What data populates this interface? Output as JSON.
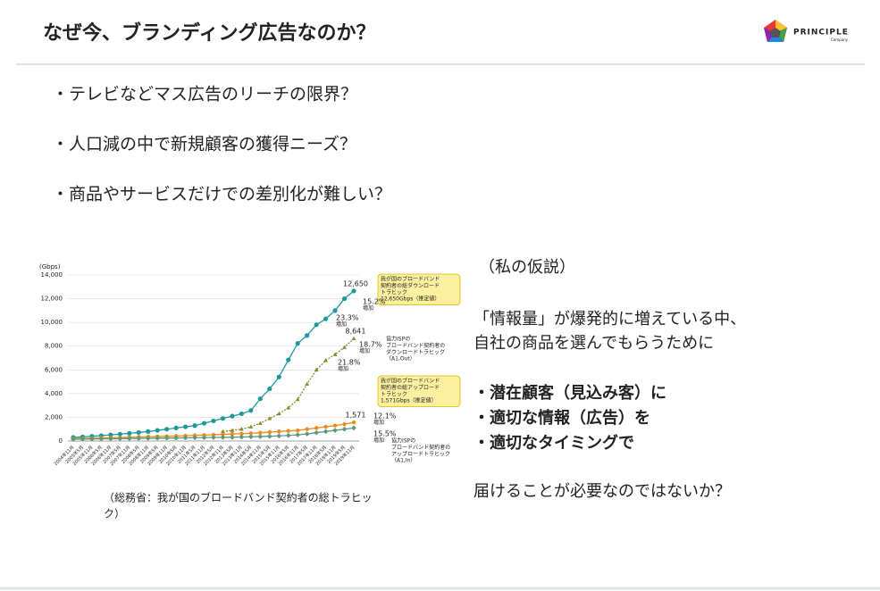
{
  "header": {
    "title": "なぜ今、ブランディング広告なのか？",
    "logo": "PRINCIPLE",
    "logo_sub": "Company"
  },
  "questions": [
    "・テレビなどマス広告のリーチの限界？",
    "・人口減の中で新規顧客の獲得ニーズ？",
    "・商品やサービスだけでの差別化が難しい？"
  ],
  "chart_data": {
    "type": "line",
    "ylabel": "(Gbps)",
    "ylim": [
      0,
      14000
    ],
    "yticks": [
      0,
      {
        "value": 2000,
        "label": "2,000"
      },
      {
        "value": 4000,
        "label": "4,000"
      },
      {
        "value": 6000,
        "label": "6,000"
      },
      {
        "value": 8000,
        "label": "8,000"
      },
      {
        "value": 10000,
        "label": "10,000"
      },
      {
        "value": 12000,
        "label": "12,000"
      },
      {
        "value": 14000,
        "label": "14,000"
      }
    ],
    "grid": true,
    "categories": [
      "2004年11月",
      "2005年5月",
      "2005年11月",
      "2006年5月",
      "2006年11月",
      "2007年5月",
      "2007年11月",
      "2008年5月",
      "2008年11月",
      "2009年5月",
      "2009年11月",
      "2010年5月",
      "2010年11月",
      "2011年5月",
      "2011年11月",
      "2012年5月",
      "2012年11月",
      "2013年5月",
      "2013年11月",
      "2014年5月",
      "2014年11月",
      "2015年5月",
      "2015年11月",
      "2016年5月",
      "2016年11月",
      "2017年5月",
      "2017年11月",
      "2018年5月",
      "2018年11月",
      "2019年5月",
      "2019年11月"
    ],
    "series": [
      {
        "name": "総ダウンロードトラヒック",
        "color": "#1a9a9c",
        "end_label": "12,650",
        "values": [
          300,
          350,
          400,
          450,
          520,
          580,
          650,
          720,
          800,
          900,
          1000,
          1100,
          1200,
          1300,
          1500,
          1700,
          1900,
          2100,
          2300,
          2580,
          3560,
          4400,
          5400,
          6840,
          8232,
          8900,
          9800,
          10300,
          11000,
          12000,
          12650
        ]
      },
      {
        "name": "協力ISPダウンロードトラヒック",
        "color": "#8a8a2a",
        "end_label": "8,641",
        "values": [
          null,
          null,
          null,
          null,
          null,
          null,
          null,
          null,
          null,
          null,
          null,
          null,
          null,
          null,
          null,
          null,
          800,
          900,
          1000,
          1200,
          1500,
          1900,
          2300,
          2800,
          3500,
          4800,
          6000,
          6800,
          7300,
          7900,
          8641
        ]
      },
      {
        "name": "総アップロードトラヒック",
        "color": "#f08a1c",
        "end_label": "1,571",
        "values": [
          200,
          220,
          240,
          260,
          280,
          300,
          320,
          340,
          360,
          380,
          400,
          420,
          450,
          480,
          500,
          530,
          560,
          590,
          620,
          650,
          700,
          750,
          800,
          850,
          900,
          1000,
          1100,
          1200,
          1300,
          1420,
          1571
        ]
      },
      {
        "name": "協力ISPアップロードトラヒック",
        "color": "#5a9a7a",
        "values": [
          150,
          160,
          170,
          180,
          190,
          200,
          210,
          220,
          230,
          240,
          250,
          260,
          270,
          280,
          290,
          300,
          310,
          320,
          340,
          360,
          380,
          400,
          430,
          470,
          520,
          600,
          700,
          800,
          900,
          1000,
          1100
        ]
      }
    ],
    "annotations": [
      {
        "lines": [
          "我が国のブロードバンド",
          "契約者の総ダウンロード",
          "トラヒック",
          "12,650Gbps（推定値）"
        ],
        "color": "#1a7a9c",
        "box": "#fbf0a0"
      },
      {
        "lines": [
          "15.2%",
          "増加"
        ],
        "color": "#1a9a9c"
      },
      {
        "lines": [
          "23.3%",
          "増加"
        ],
        "color": "#1a9a9c"
      },
      {
        "lines": [
          "協力ISPの",
          "ブロードバンド契約者の",
          "ダウンロードトラヒック",
          "（A1,Out）"
        ],
        "color": "#8a8a2a"
      },
      {
        "lines": [
          "18.7%",
          "増加"
        ],
        "color": "#8a8a2a"
      },
      {
        "lines": [
          "21.8%",
          "増加"
        ],
        "color": "#8a8a2a"
      },
      {
        "lines": [
          "我が国のブロードバンド",
          "契約者の総アップロード",
          "トラヒック",
          "1,571Gbps（推定値）"
        ],
        "color": "#e07010",
        "box": "#fbf0a0"
      },
      {
        "lines": [
          "12.1%",
          "増加"
        ],
        "color": "#f08a1c"
      },
      {
        "lines": [
          "15.5%",
          "増加"
        ],
        "color": "#5a9a7a"
      },
      {
        "lines": [
          "協力ISPの",
          "ブロードバンド契約者の",
          "アップロードトラヒック",
          "（A1,In）"
        ],
        "color": "#8a9a9a"
      }
    ]
  },
  "caption": [
    "（総務省：我が国のブロードバンド契約者の総トラヒッ",
    "ク）"
  ],
  "hypothesis": {
    "heading": "（私の仮説）",
    "lead": [
      "「情報量」が爆発的に増えている中、",
      "自社の商品を選んでもらうために"
    ],
    "points": [
      "・潜在顧客（見込み客）に",
      "・適切な情報（広告）を",
      "・適切なタイミングで"
    ],
    "conclusion": "届けることが必要なのではないか？"
  }
}
